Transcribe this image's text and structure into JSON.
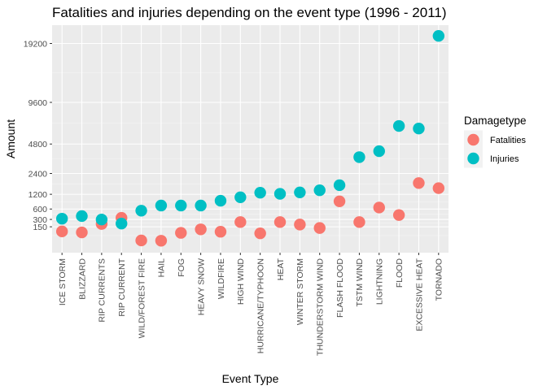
{
  "chart_data": {
    "type": "scatter",
    "title": "Fatalities and injuries depending on the event type (1996 - 2011)",
    "xlabel": "Event Type",
    "ylabel": "Amount",
    "y_scale": "sqrt",
    "y_ticks": [
      150,
      300,
      600,
      1200,
      2400,
      4800,
      9600,
      19200
    ],
    "ylim": [
      0,
      21000
    ],
    "grid": true,
    "legend_position": "right",
    "legend_title": "Damagetype",
    "categories": [
      "ICE STORM",
      "BLIZZARD",
      "RIP CURRENTS",
      "RIP CURRENT",
      "WILD/FOREST FIRE",
      "HAIL",
      "FOG",
      "HEAVY SNOW",
      "WILDFIRE",
      "HIGH WIND",
      "HURRICANE/TYPHOON",
      "HEAT",
      "WINTER STORM",
      "THUNDERSTORM WIND",
      "FLASH FLOOD",
      "TSTM WIND",
      "LIGHTNING",
      "FLOOD",
      "EXCESSIVE HEAT",
      "TORNADO"
    ],
    "series": [
      {
        "name": "Fatalities",
        "color": "#F8766D",
        "values": [
          82,
          70,
          202,
          340,
          8,
          7,
          65,
          110,
          78,
          240,
          60,
          240,
          190,
          130,
          887,
          240,
          650,
          414,
          1797,
          1511
        ]
      },
      {
        "name": "Injuries",
        "color": "#00BFC4",
        "values": [
          318,
          385,
          297,
          209,
          545,
          723,
          723,
          723,
          911,
          1062,
          1275,
          1222,
          1292,
          1400,
          1674,
          3629,
          4141,
          6679,
          6391,
          20667
        ]
      }
    ]
  }
}
